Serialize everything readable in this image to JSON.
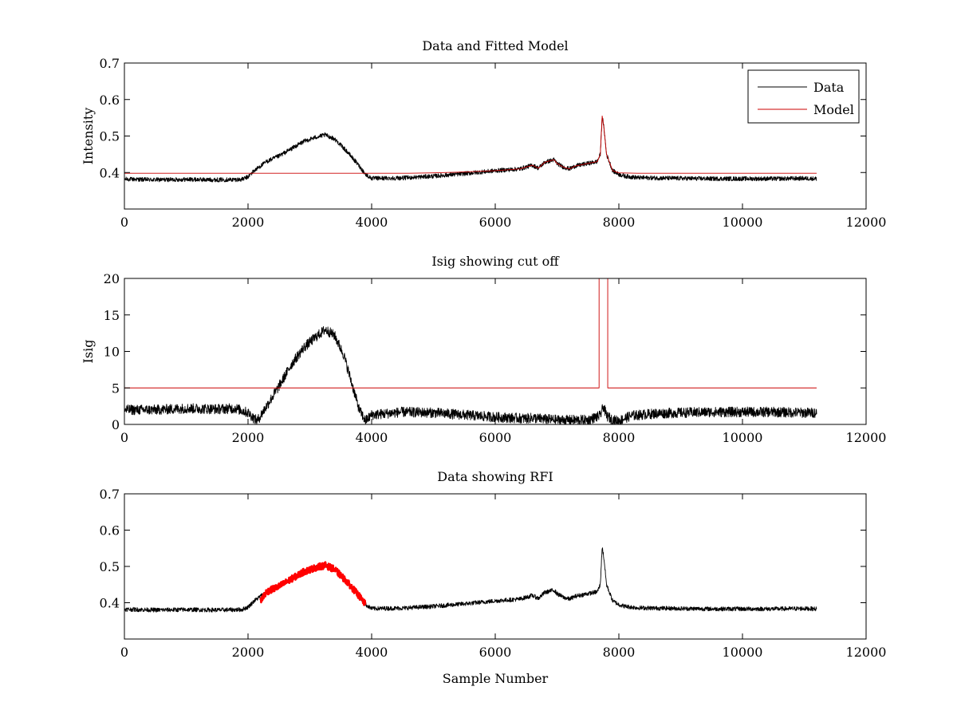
{
  "chart_data": [
    {
      "type": "line",
      "title": "Data and Fitted Model",
      "xlabel": "",
      "ylabel": "Intensity",
      "xlim": [
        0,
        12000
      ],
      "ylim": [
        0.3,
        0.7
      ],
      "xticks": [
        0,
        2000,
        4000,
        6000,
        8000,
        10000,
        12000
      ],
      "xticklabels": [
        "0",
        "2000",
        "4000",
        "6000",
        "8000",
        "10000",
        "12000"
      ],
      "yticks": [
        0.4,
        0.5,
        0.6,
        0.7
      ],
      "yticklabels": [
        "0.4",
        "0.5",
        "0.6",
        "0.7"
      ],
      "legend": {
        "placement": "top-right",
        "entries": [
          "Data",
          "Model"
        ]
      },
      "series": [
        {
          "name": "Data",
          "color": "#000000",
          "noise": 0.006,
          "x": [
            0,
            500,
            1000,
            1500,
            1900,
            2000,
            2100,
            2300,
            2500,
            2700,
            2900,
            3100,
            3250,
            3400,
            3600,
            3800,
            3900,
            4000,
            4500,
            5000,
            5500,
            6000,
            6400,
            6600,
            6700,
            6800,
            6950,
            7000,
            7100,
            7200,
            7300,
            7500,
            7650,
            7700,
            7730,
            7760,
            7800,
            7900,
            8000,
            8100,
            8300,
            8600,
            9000,
            9500,
            10000,
            10500,
            11000,
            11200
          ],
          "y": [
            0.382,
            0.38,
            0.381,
            0.38,
            0.381,
            0.388,
            0.405,
            0.43,
            0.445,
            0.465,
            0.485,
            0.497,
            0.503,
            0.492,
            0.458,
            0.418,
            0.395,
            0.384,
            0.385,
            0.39,
            0.397,
            0.405,
            0.41,
            0.42,
            0.412,
            0.428,
            0.435,
            0.425,
            0.415,
            0.41,
            0.418,
            0.425,
            0.43,
            0.45,
            0.555,
            0.52,
            0.45,
            0.405,
            0.395,
            0.39,
            0.386,
            0.385,
            0.384,
            0.383,
            0.383,
            0.383,
            0.384,
            0.383
          ]
        },
        {
          "name": "Model",
          "color": "#cc0000",
          "noise": 0,
          "x": [
            0,
            2000,
            4000,
            4600,
            5000,
            5400,
            6000,
            6400,
            6600,
            6700,
            6800,
            6950,
            7000,
            7100,
            7200,
            7300,
            7500,
            7650,
            7700,
            7730,
            7760,
            7800,
            7900,
            8000,
            8300,
            9000,
            11200
          ],
          "y": [
            0.398,
            0.398,
            0.398,
            0.398,
            0.399,
            0.401,
            0.405,
            0.41,
            0.42,
            0.412,
            0.428,
            0.435,
            0.425,
            0.415,
            0.41,
            0.418,
            0.425,
            0.43,
            0.45,
            0.555,
            0.52,
            0.45,
            0.405,
            0.399,
            0.398,
            0.398,
            0.398
          ]
        }
      ]
    },
    {
      "type": "line",
      "title": "Isig showing cut off",
      "xlabel": "",
      "ylabel": "Isig",
      "xlim": [
        0,
        12000
      ],
      "ylim": [
        0,
        20
      ],
      "xticks": [
        0,
        2000,
        4000,
        6000,
        8000,
        10000,
        12000
      ],
      "xticklabels": [
        "0",
        "2000",
        "4000",
        "6000",
        "8000",
        "10000",
        "12000"
      ],
      "yticks": [
        0,
        5,
        10,
        15,
        20
      ],
      "yticklabels": [
        "0",
        "5",
        "10",
        "15",
        "20"
      ],
      "series": [
        {
          "color": "#000000",
          "noise": 0.7,
          "x": [
            0,
            500,
            1000,
            1500,
            1800,
            2000,
            2100,
            2150,
            2300,
            2500,
            2700,
            2900,
            3100,
            3250,
            3400,
            3550,
            3700,
            3800,
            3900,
            4000,
            4500,
            5000,
            5500,
            6000,
            6500,
            6600,
            6700,
            7000,
            7500,
            7700,
            7750,
            7800,
            7900,
            8000,
            8200,
            8600,
            9000,
            9500,
            10000,
            10500,
            11000,
            11200
          ],
          "y": [
            2.0,
            2.0,
            2.2,
            2.1,
            2.2,
            1.6,
            0.8,
            0.5,
            2.5,
            5.2,
            8.2,
            10.5,
            12.0,
            13.0,
            12.2,
            9.5,
            5.0,
            2.0,
            0.5,
            1.3,
            1.7,
            1.6,
            1.3,
            1.0,
            0.8,
            0.9,
            0.8,
            0.6,
            0.6,
            1.2,
            2.5,
            1.2,
            0.6,
            0.5,
            1.2,
            1.5,
            1.6,
            1.7,
            1.7,
            1.7,
            1.6,
            1.6
          ]
        },
        {
          "color": "#cc0000",
          "noise": 0,
          "x": [
            0,
            7680,
            7680,
            7820,
            7820,
            11200
          ],
          "y": [
            5,
            5,
            20,
            20,
            5,
            5
          ]
        }
      ]
    },
    {
      "type": "line",
      "title": "Data showing RFI",
      "xlabel": "Sample Number",
      "ylabel": "",
      "xlim": [
        0,
        12000
      ],
      "ylim": [
        0.3,
        0.7
      ],
      "xticks": [
        0,
        2000,
        4000,
        6000,
        8000,
        10000,
        12000
      ],
      "xticklabels": [
        "0",
        "2000",
        "4000",
        "6000",
        "8000",
        "10000",
        "12000"
      ],
      "yticks": [
        0.4,
        0.5,
        0.6,
        0.7
      ],
      "yticklabels": [
        "0.4",
        "0.5",
        "0.6",
        "0.7"
      ],
      "series": [
        {
          "color": "#000000",
          "noise": 0.006,
          "x": [
            0,
            500,
            1000,
            1500,
            1900,
            2000,
            2100,
            2300,
            2500,
            2700,
            2900,
            3100,
            3250,
            3400,
            3600,
            3800,
            3900,
            4000,
            4500,
            5000,
            5500,
            6000,
            6400,
            6600,
            6700,
            6800,
            6950,
            7000,
            7100,
            7200,
            7300,
            7500,
            7650,
            7700,
            7730,
            7760,
            7800,
            7900,
            8000,
            8100,
            8300,
            8600,
            9000,
            9500,
            10000,
            10500,
            11000,
            11200
          ],
          "y": [
            0.382,
            0.38,
            0.381,
            0.38,
            0.381,
            0.388,
            0.405,
            0.43,
            0.445,
            0.465,
            0.485,
            0.497,
            0.503,
            0.492,
            0.458,
            0.418,
            0.395,
            0.384,
            0.385,
            0.39,
            0.397,
            0.405,
            0.41,
            0.42,
            0.412,
            0.428,
            0.435,
            0.425,
            0.415,
            0.41,
            0.418,
            0.425,
            0.43,
            0.45,
            0.555,
            0.52,
            0.45,
            0.405,
            0.395,
            0.39,
            0.386,
            0.385,
            0.384,
            0.383,
            0.383,
            0.383,
            0.384,
            0.383
          ]
        },
        {
          "color": "#ff0000",
          "noise": 0.009,
          "bold": true,
          "x": [
            2200,
            2300,
            2500,
            2700,
            2900,
            3100,
            3250,
            3400,
            3600,
            3800,
            3900
          ],
          "y": [
            0.405,
            0.43,
            0.445,
            0.465,
            0.485,
            0.497,
            0.503,
            0.492,
            0.458,
            0.418,
            0.395
          ]
        }
      ]
    }
  ]
}
